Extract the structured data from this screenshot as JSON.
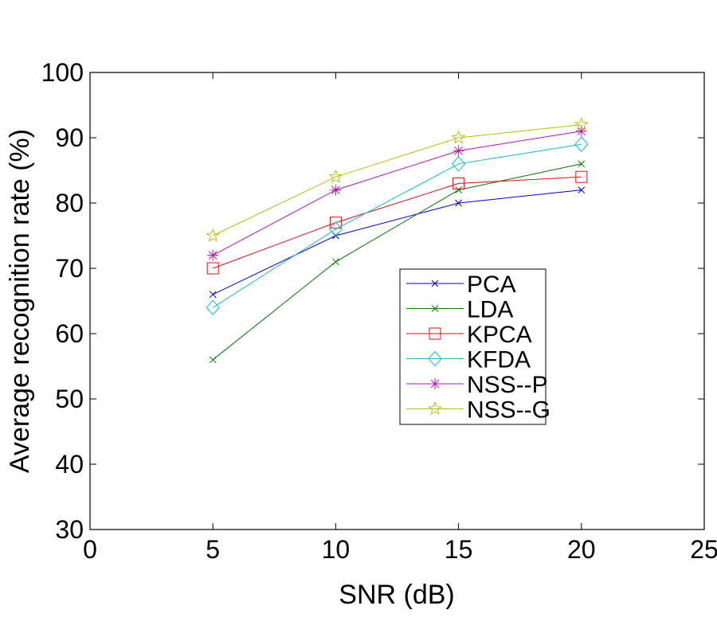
{
  "chart_data": {
    "type": "line",
    "title": "",
    "xlabel": "SNR (dB)",
    "ylabel": "Average recognition rate (%)",
    "xlim": [
      0,
      25
    ],
    "ylim": [
      30,
      100
    ],
    "xticks": [
      0,
      5,
      10,
      15,
      20,
      25
    ],
    "yticks": [
      30,
      40,
      50,
      60,
      70,
      80,
      90,
      100
    ],
    "grid": false,
    "legend_position": "center-right",
    "x": [
      5,
      10,
      15,
      20
    ],
    "series": [
      {
        "name": "PCA",
        "values": [
          66,
          75,
          80,
          82
        ],
        "color": "#0000cc",
        "marker": "x"
      },
      {
        "name": "LDA",
        "values": [
          56,
          71,
          82,
          86
        ],
        "color": "#007700",
        "marker": "x"
      },
      {
        "name": "KPCA",
        "values": [
          70,
          77,
          83,
          84
        ],
        "color": "#dd1111",
        "marker": "square"
      },
      {
        "name": "KFDA",
        "values": [
          64,
          76,
          86,
          89
        ],
        "color": "#11bbcc",
        "marker": "diamond"
      },
      {
        "name": "NSS--P",
        "values": [
          72,
          82,
          88,
          91
        ],
        "color": "#bb11bb",
        "marker": "asterisk"
      },
      {
        "name": "NSS--G",
        "values": [
          75,
          84,
          90,
          92
        ],
        "color": "#bbbb11",
        "marker": "star"
      }
    ]
  }
}
